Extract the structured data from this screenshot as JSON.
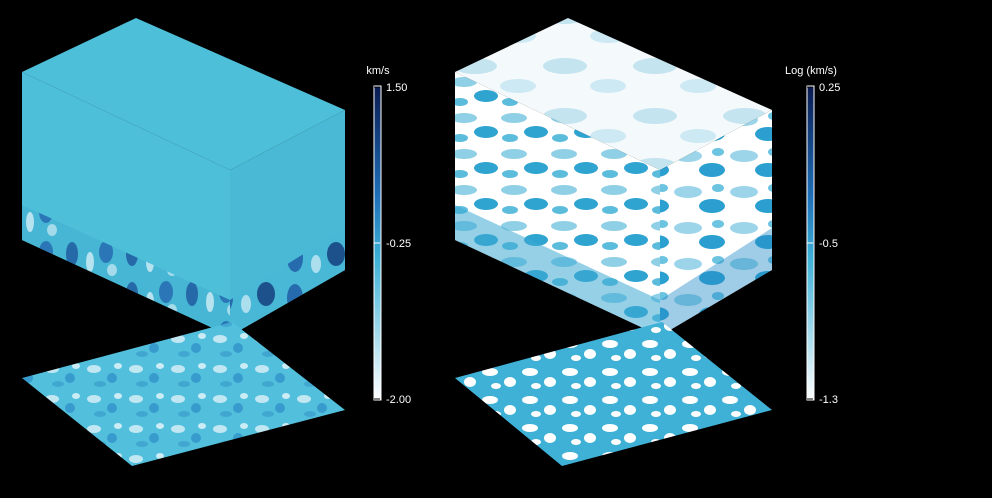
{
  "panels": [
    {
      "id": "velocity",
      "colorbar": {
        "unit": "km/s",
        "tick_labels": [
          "1.50",
          "-0.25",
          "-2.00"
        ],
        "tick_values": [
          1.5,
          -0.25,
          -2.0
        ],
        "colors": {
          "top": "#0a1a50",
          "mid": "#2a9fd0",
          "bottom": "#ffffff"
        }
      },
      "cube_top_color": "#4dbfd9"
    },
    {
      "id": "log-velocity",
      "colorbar": {
        "unit": "Log (km/s)",
        "tick_labels": [
          "0.25",
          "-0.5",
          "-1.3"
        ],
        "tick_values": [
          0.25,
          -0.5,
          -1.3
        ],
        "colors": {
          "top": "#0a1a50",
          "mid": "#2a9fd0",
          "bottom": "#ffffff"
        }
      },
      "cube_top_color": "#f2f8fa"
    }
  ],
  "background": "#000000"
}
